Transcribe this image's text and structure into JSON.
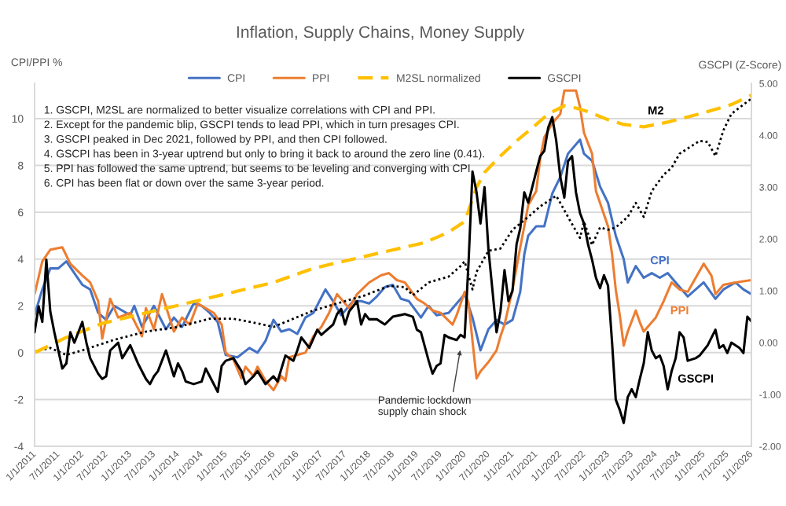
{
  "chart_data": {
    "type": "line",
    "title": "Inflation, Supply Chains, Money Supply",
    "ylabel": "CPI/PPI %",
    "y2label": "GSCPI (Z-Score)",
    "xlim": [
      "2011-01-01",
      "2026-01-01"
    ],
    "xticks": [
      {
        "value": "2011-01-01",
        "label": "1/1/2011"
      },
      {
        "value": "2011-07-01",
        "label": "7/1/2011"
      },
      {
        "value": "2012-01-01",
        "label": "1/1/2012"
      },
      {
        "value": "2012-07-01",
        "label": "7/1/2012"
      },
      {
        "value": "2013-01-01",
        "label": "1/1/2013"
      },
      {
        "value": "2013-07-01",
        "label": "7/1/2013"
      },
      {
        "value": "2014-01-01",
        "label": "1/1/2014"
      },
      {
        "value": "2014-07-01",
        "label": "7/1/2014"
      },
      {
        "value": "2015-01-01",
        "label": "1/1/2015"
      },
      {
        "value": "2015-07-01",
        "label": "7/1/2015"
      },
      {
        "value": "2016-01-01",
        "label": "1/1/2016"
      },
      {
        "value": "2016-07-01",
        "label": "7/1/2016"
      },
      {
        "value": "2017-01-01",
        "label": "1/1/2017"
      },
      {
        "value": "2017-07-01",
        "label": "7/1/2017"
      },
      {
        "value": "2018-01-01",
        "label": "1/1/2018"
      },
      {
        "value": "2018-07-01",
        "label": "7/1/2018"
      },
      {
        "value": "2019-01-01",
        "label": "1/1/2019"
      },
      {
        "value": "2019-07-01",
        "label": "7/1/2019"
      },
      {
        "value": "2020-01-01",
        "label": "1/1/2020"
      },
      {
        "value": "2020-07-01",
        "label": "7/1/2020"
      },
      {
        "value": "2021-01-01",
        "label": "1/1/2021"
      },
      {
        "value": "2021-07-01",
        "label": "7/1/2021"
      },
      {
        "value": "2022-01-01",
        "label": "1/1/2022"
      },
      {
        "value": "2022-07-01",
        "label": "7/1/2022"
      },
      {
        "value": "2023-01-01",
        "label": "1/1/2023"
      },
      {
        "value": "2023-07-01",
        "label": "7/1/2023"
      },
      {
        "value": "2024-01-01",
        "label": "1/1/2024"
      },
      {
        "value": "2024-07-01",
        "label": "7/1/2024"
      },
      {
        "value": "2025-01-01",
        "label": "1/1/2025"
      },
      {
        "value": "2025-07-01",
        "label": "7/1/2025"
      },
      {
        "value": "2026-01-01",
        "label": "1/1/2026"
      }
    ],
    "ylim": [
      -4,
      11.5
    ],
    "yticks": [
      -4,
      -2,
      0,
      2,
      4,
      6,
      8,
      10
    ],
    "y2lim": [
      -2,
      5
    ],
    "y2ticks": [
      {
        "value": -2,
        "label": "-2.00"
      },
      {
        "value": -1,
        "label": "-1.00"
      },
      {
        "value": 0,
        "label": "0.00"
      },
      {
        "value": 1,
        "label": "1.00"
      },
      {
        "value": 2,
        "label": "2.00"
      },
      {
        "value": 3,
        "label": "3.00"
      },
      {
        "value": 4,
        "label": "4.00"
      },
      {
        "value": 5,
        "label": "5.00"
      }
    ],
    "grid": "y",
    "legend": "top",
    "series": [
      {
        "name": "CPI",
        "color": "#4472c4",
        "line_style": "solid",
        "x": [
          "2011-01",
          "2011-03",
          "2011-05",
          "2011-07",
          "2011-09",
          "2011-11",
          "2012-01",
          "2012-03",
          "2012-05",
          "2012-07",
          "2012-09",
          "2012-11",
          "2013-01",
          "2013-02",
          "2013-04",
          "2013-07",
          "2013-10",
          "2013-12",
          "2014-02",
          "2014-05",
          "2014-07",
          "2014-09",
          "2014-11",
          "2015-01",
          "2015-04",
          "2015-07",
          "2015-09",
          "2015-11",
          "2016-01",
          "2016-03",
          "2016-05",
          "2016-07",
          "2016-09",
          "2016-11",
          "2017-02",
          "2017-04",
          "2017-06",
          "2017-09",
          "2017-11",
          "2018-01",
          "2018-03",
          "2018-05",
          "2018-07",
          "2018-09",
          "2018-11",
          "2019-02",
          "2019-04",
          "2019-06",
          "2019-09",
          "2019-11",
          "2020-01",
          "2020-03",
          "2020-05",
          "2020-07",
          "2020-09",
          "2020-11",
          "2021-01",
          "2021-03",
          "2021-04",
          "2021-05",
          "2021-07",
          "2021-09",
          "2021-11",
          "2022-01",
          "2022-03",
          "2022-06",
          "2022-07",
          "2022-09",
          "2022-11",
          "2023-01",
          "2023-03",
          "2023-05",
          "2023-06",
          "2023-08",
          "2023-10",
          "2023-12",
          "2024-02",
          "2024-04",
          "2024-06",
          "2024-09",
          "2024-11",
          "2025-01",
          "2025-04",
          "2025-06",
          "2025-09",
          "2025-11",
          "2026-01"
        ],
        "values": [
          1.6,
          2.7,
          3.6,
          3.6,
          3.9,
          3.4,
          2.9,
          2.7,
          1.7,
          1.4,
          2.0,
          1.8,
          1.6,
          2.0,
          1.1,
          2.0,
          1.0,
          1.5,
          1.1,
          2.1,
          2.0,
          1.7,
          1.3,
          -0.1,
          -0.2,
          0.2,
          0.0,
          0.5,
          1.4,
          0.9,
          1.0,
          0.8,
          1.5,
          1.7,
          2.7,
          2.2,
          1.6,
          2.2,
          2.2,
          2.1,
          2.4,
          2.8,
          2.9,
          2.3,
          2.2,
          1.5,
          2.0,
          1.6,
          1.7,
          2.1,
          2.5,
          1.5,
          0.1,
          1.0,
          1.4,
          1.2,
          1.4,
          2.6,
          4.2,
          5.0,
          5.4,
          5.4,
          6.8,
          7.5,
          8.5,
          9.1,
          8.5,
          8.2,
          7.1,
          6.4,
          5.0,
          4.0,
          3.0,
          3.7,
          3.2,
          3.4,
          3.2,
          3.4,
          3.0,
          2.4,
          2.7,
          3.0,
          2.3,
          2.7,
          3.0,
          2.7,
          2.5
        ]
      },
      {
        "name": "PPI",
        "color": "#ed7d31",
        "line_style": "solid",
        "x": [
          "2011-01",
          "2011-03",
          "2011-05",
          "2011-08",
          "2011-10",
          "2012-01",
          "2012-03",
          "2012-05",
          "2012-06",
          "2012-08",
          "2012-10",
          "2013-01",
          "2013-04",
          "2013-05",
          "2013-07",
          "2013-09",
          "2013-12",
          "2014-02",
          "2014-04",
          "2014-06",
          "2014-08",
          "2014-10",
          "2014-12",
          "2015-01",
          "2015-03",
          "2015-05",
          "2015-06",
          "2015-08",
          "2015-09",
          "2015-11",
          "2016-01",
          "2016-03",
          "2016-04",
          "2016-05",
          "2016-07",
          "2016-09",
          "2016-11",
          "2017-01",
          "2017-03",
          "2017-05",
          "2017-08",
          "2017-10",
          "2018-01",
          "2018-04",
          "2018-06",
          "2018-08",
          "2018-10",
          "2019-01",
          "2019-03",
          "2019-05",
          "2019-07",
          "2019-10",
          "2019-11",
          "2020-01",
          "2020-02",
          "2020-03",
          "2020-04",
          "2020-05",
          "2020-07",
          "2020-09",
          "2020-10",
          "2020-11",
          "2021-01",
          "2021-03",
          "2021-04",
          "2021-05",
          "2021-07",
          "2021-08",
          "2021-09",
          "2021-11",
          "2022-01",
          "2022-02",
          "2022-05",
          "2022-06",
          "2022-07",
          "2022-09",
          "2022-10",
          "2023-01",
          "2023-02",
          "2023-03",
          "2023-04",
          "2023-05",
          "2023-06",
          "2023-08",
          "2023-09",
          "2023-10",
          "2023-11",
          "2024-01",
          "2024-03",
          "2024-05",
          "2024-07",
          "2024-09",
          "2025-01",
          "2025-03",
          "2025-04",
          "2025-06",
          "2025-09",
          "2026-01"
        ],
        "values": [
          2.5,
          3.9,
          4.4,
          4.5,
          3.8,
          3.3,
          3.0,
          2.2,
          0.6,
          2.3,
          1.5,
          1.7,
          0.7,
          1.9,
          1.0,
          2.5,
          0.9,
          1.5,
          1.2,
          2.1,
          1.9,
          1.7,
          1.2,
          0.0,
          -0.3,
          -1.1,
          -0.6,
          -1.0,
          -0.6,
          -1.2,
          -1.6,
          -1.0,
          -1.2,
          -0.2,
          -0.1,
          0.0,
          0.7,
          1.1,
          1.7,
          2.5,
          1.9,
          2.5,
          3.0,
          3.3,
          3.4,
          3.1,
          3.0,
          2.3,
          2.1,
          1.8,
          1.7,
          1.2,
          1.6,
          2.6,
          2.1,
          0.5,
          -1.1,
          -0.8,
          -0.4,
          0.1,
          0.7,
          1.2,
          2.7,
          4.5,
          5.4,
          6.3,
          6.9,
          8.3,
          9.2,
          9.8,
          10.2,
          11.2,
          11.2,
          10.5,
          9.4,
          8.5,
          6.9,
          5.4,
          4.2,
          2.7,
          1.6,
          0.3,
          0.9,
          1.8,
          1.3,
          0.9,
          1.1,
          1.5,
          2.2,
          3.0,
          2.7,
          2.6,
          3.8,
          3.3,
          2.5,
          2.9,
          3.0,
          3.1
        ]
      },
      {
        "color": "#000000",
        "line_style": "dotted",
        "x": [
          "2011-01",
          "2011-05",
          "2011-09",
          "2012-01",
          "2012-09",
          "2013-05",
          "2014-01",
          "2014-09",
          "2015-03",
          "2015-09",
          "2016-01",
          "2016-06",
          "2016-11",
          "2017-05",
          "2017-12",
          "2018-06",
          "2018-10",
          "2018-12",
          "2019-04",
          "2019-09",
          "2019-12",
          "2020-01",
          "2020-03",
          "2020-04",
          "2020-07",
          "2020-10",
          "2021-01",
          "2021-05",
          "2021-08",
          "2021-12",
          "2022-01",
          "2022-03",
          "2022-06",
          "2022-07",
          "2022-09",
          "2022-11",
          "2023-01",
          "2023-03",
          "2023-06",
          "2023-08",
          "2023-10",
          "2023-12",
          "2024-03",
          "2024-05",
          "2024-07",
          "2024-12",
          "2025-02",
          "2025-04",
          "2025-06",
          "2025-08",
          "2025-11",
          "2026-01"
        ],
        "values": [
          0.05,
          0.2,
          -0.1,
          0.1,
          0.55,
          0.9,
          1.1,
          1.45,
          1.45,
          1.25,
          1.1,
          1.45,
          1.8,
          2.1,
          2.45,
          2.85,
          2.8,
          2.45,
          3.0,
          3.25,
          3.7,
          3.9,
          2.7,
          3.45,
          4.35,
          4.45,
          5.25,
          5.8,
          6.25,
          6.7,
          6.4,
          5.8,
          4.9,
          5.6,
          4.6,
          5.35,
          5.25,
          5.35,
          5.8,
          6.4,
          5.8,
          6.9,
          7.6,
          7.9,
          8.5,
          9.05,
          9.0,
          8.4,
          9.5,
          10.2,
          10.6,
          10.85
        ]
      },
      {
        "name": "M2SL normalized",
        "color": "#ffc000",
        "line_style": "dashed",
        "x": [
          "2011-01",
          "2011-09",
          "2012-06",
          "2013-05",
          "2014-03",
          "2015-02",
          "2016-01",
          "2016-11",
          "2017-09",
          "2018-06",
          "2019-03",
          "2019-09",
          "2020-01",
          "2020-04",
          "2020-06",
          "2020-10",
          "2021-02",
          "2021-06",
          "2021-10",
          "2022-02",
          "2022-05",
          "2022-08",
          "2023-01",
          "2023-05",
          "2023-10",
          "2024-01",
          "2024-04",
          "2024-12",
          "2025-08",
          "2026-01"
        ],
        "values": [
          0.0,
          0.65,
          1.25,
          1.7,
          2.1,
          2.55,
          3.0,
          3.6,
          4.0,
          4.35,
          4.7,
          5.15,
          5.6,
          7.05,
          7.7,
          8.4,
          9.05,
          9.6,
          10.2,
          10.55,
          10.45,
          10.3,
          9.95,
          9.75,
          9.65,
          9.75,
          9.85,
          10.2,
          10.6,
          11.0
        ]
      },
      {
        "name": "GSCPI",
        "color": "#000000",
        "line_style": "solid",
        "axis": "y2",
        "x": [
          "2011-01",
          "2011-02",
          "2011-03",
          "2011-04",
          "2011-05",
          "2011-06",
          "2011-08",
          "2011-09",
          "2011-10",
          "2011-11",
          "2012-01",
          "2012-02",
          "2012-03",
          "2012-05",
          "2012-06",
          "2012-07",
          "2012-08",
          "2012-10",
          "2012-11",
          "2013-01",
          "2013-03",
          "2013-05",
          "2013-06",
          "2013-07",
          "2013-08",
          "2013-10",
          "2013-12",
          "2014-01",
          "2014-02",
          "2014-03",
          "2014-05",
          "2014-07",
          "2014-08",
          "2014-11",
          "2014-12",
          "2015-01",
          "2015-03",
          "2015-05",
          "2015-06",
          "2015-08",
          "2015-09",
          "2015-11",
          "2016-01",
          "2016-02",
          "2016-04",
          "2016-06",
          "2016-07",
          "2016-08",
          "2016-10",
          "2016-12",
          "2017-01",
          "2017-04",
          "2017-05",
          "2017-06",
          "2017-07",
          "2017-08",
          "2017-10",
          "2017-11",
          "2017-12",
          "2018-01",
          "2018-03",
          "2018-05",
          "2018-07",
          "2018-10",
          "2018-12",
          "2019-01",
          "2019-02",
          "2019-04",
          "2019-05",
          "2019-06",
          "2019-07",
          "2019-08",
          "2019-09",
          "2019-11",
          "2019-12",
          "2020-01",
          "2020-02",
          "2020-03",
          "2020-04",
          "2020-05",
          "2020-06",
          "2020-07",
          "2020-08",
          "2020-09",
          "2020-10",
          "2020-11",
          "2020-12",
          "2021-01",
          "2021-02",
          "2021-03",
          "2021-04",
          "2021-05",
          "2021-06",
          "2021-07",
          "2021-08",
          "2021-09",
          "2021-10",
          "2021-11",
          "2021-12",
          "2022-01",
          "2022-02",
          "2022-03",
          "2022-04",
          "2022-05",
          "2022-06",
          "2022-07",
          "2022-08",
          "2022-09",
          "2022-10",
          "2022-11",
          "2022-12",
          "2023-01",
          "2023-02",
          "2023-03",
          "2023-04",
          "2023-05",
          "2023-06",
          "2023-07",
          "2023-08",
          "2023-09",
          "2023-10",
          "2023-11",
          "2023-12",
          "2024-01",
          "2024-02",
          "2024-03",
          "2024-04",
          "2024-05",
          "2024-06",
          "2024-07",
          "2024-08",
          "2024-09",
          "2024-11",
          "2024-12",
          "2025-01",
          "2025-02",
          "2025-04",
          "2025-05",
          "2025-06",
          "2025-07",
          "2025-08",
          "2025-10",
          "2025-11",
          "2025-12",
          "2026-01"
        ],
        "values": [
          0.2,
          0.7,
          0.4,
          1.6,
          0.6,
          0.2,
          -0.5,
          -0.4,
          0.2,
          0.0,
          0.4,
          0.0,
          -0.3,
          -0.6,
          -0.7,
          -0.65,
          -0.15,
          0.0,
          -0.3,
          -0.05,
          -0.4,
          -0.7,
          -0.8,
          -0.65,
          -0.55,
          -0.15,
          -0.65,
          -0.4,
          -0.55,
          -0.75,
          -0.8,
          -0.75,
          -0.5,
          -0.95,
          -0.45,
          -0.35,
          -0.3,
          -0.55,
          -0.8,
          -0.65,
          -0.55,
          -0.8,
          -0.65,
          -0.75,
          -0.25,
          -0.35,
          -0.15,
          0.1,
          -0.1,
          0.25,
          0.15,
          0.35,
          0.55,
          0.65,
          0.35,
          0.6,
          0.8,
          0.35,
          0.55,
          0.45,
          0.45,
          0.35,
          0.5,
          0.55,
          0.5,
          0.25,
          0.2,
          -0.35,
          -0.6,
          -0.45,
          -0.4,
          0.15,
          0.1,
          0.05,
          0.15,
          0.1,
          1.6,
          3.3,
          2.9,
          2.3,
          3.0,
          1.8,
          1.0,
          0.2,
          0.6,
          1.4,
          0.8,
          1.0,
          1.9,
          2.2,
          2.9,
          2.7,
          3.0,
          3.3,
          3.6,
          3.7,
          4.15,
          4.35,
          3.9,
          3.2,
          2.8,
          3.5,
          3.6,
          2.9,
          2.5,
          2.3,
          1.9,
          1.6,
          1.25,
          1.05,
          1.3,
          1.1,
          0.0,
          -1.1,
          -1.3,
          -1.55,
          -1.05,
          -0.9,
          -1.05,
          -0.7,
          -0.4,
          0.2,
          -0.15,
          -0.3,
          -0.25,
          -0.45,
          -0.9,
          -0.55,
          -0.3,
          0.2,
          0.1,
          -0.35,
          -0.3,
          -0.25,
          -0.15,
          -0.05,
          0.25,
          -0.1,
          -0.05,
          -0.2,
          0.0,
          -0.1,
          -0.2,
          0.5,
          0.41
        ]
      }
    ],
    "annotations": [
      "1. GSCPI, M2SL are normalized to better visualize correlations with CPI and PPI.",
      "2. Except for the pandemic blip, GSCPI tends to lead PPI, which in turn presages CPI.",
      "3. GSCPI peaked in Dec 2021, followed by PPI, and then CPI followed.",
      "4. GSCPI has been in 3-year uptrend but only to bring it back to around the zero line (0.41).",
      "5. PPI has followed the same uptrend, but seems to be leveling and converging with CPI.",
      "6. CPI has been flat or down over the same 3-year period.",
      {
        "text": "Pandemic lockdown\nsupply chain shock",
        "x": "2019-12",
        "y": 0.2
      },
      {
        "text": "M2",
        "x": "2024-01",
        "y": 9.75
      },
      {
        "text": "CPI",
        "x": "2024-02",
        "y": 3.2
      },
      {
        "text": "PPI",
        "x": "2024-07",
        "y": 2.7
      },
      {
        "text": "GSCPI",
        "x": "2024-11",
        "y": -0.24
      }
    ]
  }
}
